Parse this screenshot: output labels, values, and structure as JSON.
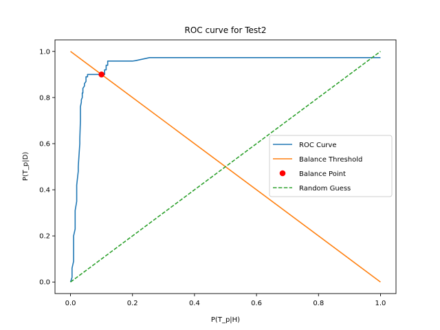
{
  "chart_data": {
    "type": "line",
    "title": "ROC curve for Test2",
    "xlabel": "P(T_p|H)",
    "ylabel": "P(T_p|D)",
    "xlim": [
      -0.05,
      1.05
    ],
    "ylim": [
      -0.05,
      1.05
    ],
    "xticks": [
      0.0,
      0.2,
      0.4,
      0.6,
      0.8,
      1.0
    ],
    "yticks": [
      0.0,
      0.2,
      0.4,
      0.6,
      0.8,
      1.0
    ],
    "xtick_labels": [
      "0.0",
      "0.2",
      "0.4",
      "0.6",
      "0.8",
      "1.0"
    ],
    "ytick_labels": [
      "0.0",
      "0.2",
      "0.4",
      "0.6",
      "0.8",
      "1.0"
    ],
    "grid": false,
    "legend_position": "center-right",
    "series": [
      {
        "name": "ROC Curve",
        "kind": "line",
        "style": "solid",
        "color": "#1f77b4",
        "x": [
          0.0,
          0.005,
          0.005,
          0.01,
          0.01,
          0.015,
          0.015,
          0.02,
          0.02,
          0.025,
          0.025,
          0.03,
          0.03,
          0.032,
          0.032,
          0.035,
          0.035,
          0.038,
          0.038,
          0.04,
          0.04,
          0.045,
          0.045,
          0.05,
          0.05,
          0.055,
          0.055,
          0.06,
          0.06,
          0.065,
          0.065,
          0.07,
          0.07,
          0.08,
          0.08,
          0.09,
          0.09,
          0.1,
          0.1,
          0.11,
          0.11,
          0.115,
          0.115,
          0.12,
          0.12,
          0.2,
          0.21,
          0.255,
          0.3,
          0.5,
          0.8,
          1.0
        ],
        "y": [
          0.0,
          0.02,
          0.06,
          0.09,
          0.2,
          0.23,
          0.31,
          0.35,
          0.42,
          0.48,
          0.5,
          0.6,
          0.62,
          0.7,
          0.76,
          0.78,
          0.79,
          0.8,
          0.82,
          0.82,
          0.84,
          0.85,
          0.86,
          0.87,
          0.89,
          0.89,
          0.9,
          0.9,
          0.9,
          0.9,
          0.9,
          0.9,
          0.9,
          0.9,
          0.9,
          0.9,
          0.9,
          0.9,
          0.9,
          0.9,
          0.92,
          0.92,
          0.94,
          0.94,
          0.958,
          0.958,
          0.96,
          0.973,
          0.973,
          0.973,
          0.973,
          0.973
        ]
      },
      {
        "name": "Balance Threshold",
        "kind": "line",
        "style": "solid",
        "color": "#ff7f0e",
        "x": [
          0.0,
          1.0
        ],
        "y": [
          1.0,
          0.0
        ]
      },
      {
        "name": "Balance Point",
        "kind": "scatter",
        "color": "#ff0000",
        "x": [
          0.1
        ],
        "y": [
          0.9
        ]
      },
      {
        "name": "Random Guess",
        "kind": "line",
        "style": "dashed",
        "color": "#2ca02c",
        "x": [
          0.0,
          1.0
        ],
        "y": [
          0.0,
          1.0
        ]
      }
    ]
  }
}
